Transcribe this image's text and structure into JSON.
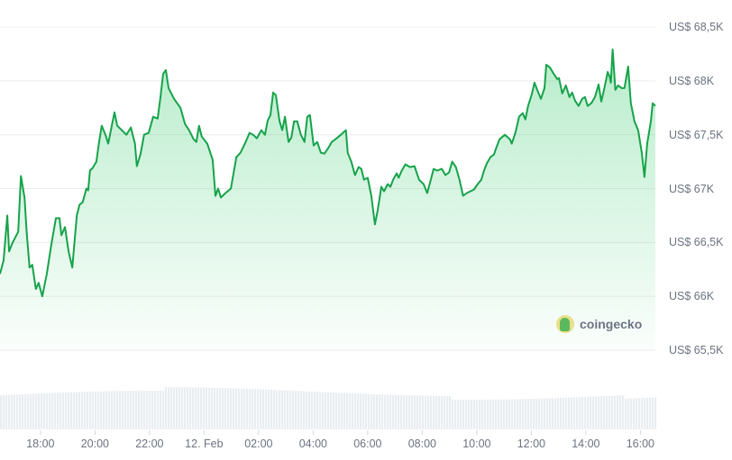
{
  "chart_data": {
    "type": "area",
    "title": "",
    "xlabel": "",
    "ylabel": "",
    "currency_prefix": "US$",
    "ylim": [
      65500,
      68500
    ],
    "grid": true,
    "line_color": "#16a34a",
    "fill_color": "#22c55e",
    "volume_color": "#e9edf1",
    "y_ticks": [
      "US$ 68,5K",
      "US$ 68K",
      "US$ 67,5K",
      "US$ 67K",
      "US$ 66,5K",
      "US$ 66K",
      "US$ 65,5K"
    ],
    "y_tick_values": [
      68500,
      68000,
      67500,
      67000,
      66500,
      66000,
      65500
    ],
    "x_ticks": [
      "18:00",
      "20:00",
      "22:00",
      "12. Feb",
      "02:00",
      "04:00",
      "06:00",
      "08:00",
      "10:00",
      "12:00",
      "14:00",
      "16:00"
    ],
    "x_tick_times": [
      "18:00",
      "20:00",
      "22:00",
      "00:00",
      "02:00",
      "04:00",
      "06:00",
      "08:00",
      "10:00",
      "12:00",
      "14:00",
      "16:00"
    ],
    "x_start": "16:31",
    "x_end": "16:33",
    "series": [
      {
        "x": [
          "16:31",
          "16:39",
          "16:47",
          "16:51",
          "16:59",
          "17:11",
          "17:17",
          "17:25",
          "17:30",
          "17:36",
          "17:42",
          "17:50",
          "17:56",
          "18:04",
          "18:14",
          "18:24",
          "18:34",
          "18:42",
          "18:46",
          "18:54",
          "19:02",
          "19:10",
          "19:20",
          "19:26",
          "19:33",
          "19:41",
          "19:45",
          "19:49",
          "19:55",
          "20:03",
          "20:09",
          "20:15",
          "20:23",
          "20:29",
          "20:37",
          "20:43",
          "20:49",
          "20:59",
          "21:09",
          "21:19",
          "21:28",
          "21:32",
          "21:40",
          "21:48",
          "21:58",
          "22:08",
          "22:18",
          "22:24",
          "22:30",
          "22:36",
          "22:42",
          "22:54",
          "23:08",
          "23:18",
          "23:27",
          "23:37",
          "23:43",
          "23:49",
          "23:55",
          "00:07",
          "00:19",
          "00:25",
          "00:31",
          "00:37",
          "00:47",
          "00:59",
          "01:11",
          "01:20",
          "01:30",
          "01:40",
          "01:48",
          "01:56",
          "02:06",
          "02:14",
          "02:20",
          "02:26",
          "02:32",
          "02:38",
          "02:46",
          "02:52",
          "02:58",
          "03:06",
          "03:12",
          "03:18",
          "03:25",
          "03:33",
          "03:41",
          "03:47",
          "03:53",
          "04:01",
          "04:09",
          "04:17",
          "04:25",
          "04:33",
          "04:41",
          "04:49",
          "05:01",
          "05:12",
          "05:16",
          "05:24",
          "05:32",
          "05:40",
          "05:46",
          "05:52",
          "06:00",
          "06:08",
          "06:16",
          "06:22",
          "06:30",
          "06:36",
          "06:44",
          "06:50",
          "06:56",
          "07:04",
          "07:08",
          "07:15",
          "07:23",
          "07:33",
          "07:43",
          "07:53",
          "08:03",
          "08:11",
          "08:19",
          "08:25",
          "08:33",
          "08:43",
          "08:51",
          "08:59",
          "09:06",
          "09:14",
          "09:22",
          "09:30",
          "09:38",
          "09:46",
          "09:54",
          "10:02",
          "10:10",
          "10:16",
          "10:22",
          "10:30",
          "10:38",
          "10:42",
          "10:50",
          "11:02",
          "11:13",
          "11:17",
          "11:25",
          "11:33",
          "11:41",
          "11:47",
          "11:53",
          "12:01",
          "12:07",
          "12:13",
          "12:21",
          "12:29",
          "12:33",
          "12:41",
          "12:49",
          "12:57",
          "13:01",
          "13:08",
          "13:16",
          "13:24",
          "13:30",
          "13:36",
          "13:44",
          "13:52",
          "13:58",
          "14:04",
          "14:12",
          "14:20",
          "14:28",
          "14:34",
          "14:40",
          "14:44",
          "14:48",
          "14:52",
          "14:55",
          "14:59",
          "15:05",
          "15:11",
          "15:19",
          "15:25",
          "15:33",
          "15:39",
          "15:47",
          "15:55",
          "16:03",
          "16:09",
          "16:15",
          "16:23",
          "16:27",
          "16:33"
        ],
        "values": [
          66208,
          66333,
          66750,
          66417,
          66500,
          66600,
          67117,
          66917,
          66583,
          66267,
          66292,
          66067,
          66125,
          66000,
          66208,
          66483,
          66725,
          66725,
          66567,
          66642,
          66417,
          66267,
          66750,
          66850,
          66875,
          67000,
          66983,
          67167,
          67192,
          67250,
          67433,
          67583,
          67500,
          67417,
          67583,
          67708,
          67583,
          67542,
          67500,
          67567,
          67417,
          67208,
          67317,
          67500,
          67517,
          67667,
          67650,
          67850,
          68067,
          68100,
          67933,
          67833,
          67750,
          67600,
          67542,
          67458,
          67433,
          67583,
          67483,
          67417,
          67267,
          66933,
          67000,
          66917,
          66958,
          67000,
          67292,
          67333,
          67417,
          67517,
          67500,
          67467,
          67542,
          67500,
          67633,
          67683,
          67892,
          67867,
          67625,
          67542,
          67667,
          67433,
          67475,
          67625,
          67625,
          67500,
          67433,
          67667,
          67683,
          67400,
          67433,
          67333,
          67325,
          67375,
          67433,
          67458,
          67500,
          67542,
          67333,
          67250,
          67125,
          67200,
          67183,
          67083,
          67100,
          66933,
          66667,
          66800,
          67017,
          66975,
          67042,
          67017,
          67083,
          67142,
          67100,
          67167,
          67225,
          67200,
          67208,
          67083,
          67042,
          66958,
          67083,
          67183,
          67167,
          67183,
          67125,
          67150,
          67250,
          67200,
          67083,
          66933,
          66958,
          66975,
          66992,
          67042,
          67083,
          67167,
          67233,
          67292,
          67317,
          67367,
          67458,
          67500,
          67458,
          67417,
          67517,
          67667,
          67700,
          67642,
          67767,
          67875,
          67983,
          67917,
          67833,
          67933,
          68150,
          68125,
          68067,
          68017,
          68025,
          67883,
          67958,
          67850,
          67892,
          67817,
          67767,
          67833,
          67850,
          67767,
          67792,
          67850,
          67967,
          67808,
          67917,
          68000,
          68083,
          68042,
          67983,
          68292,
          67917,
          67958,
          67933,
          67933,
          68133,
          67792,
          67625,
          67542,
          67333,
          67108,
          67417,
          67625,
          67792,
          67767
        ]
      }
    ]
  },
  "watermark": {
    "text": "coingecko",
    "icon": "gecko-logo-icon"
  }
}
